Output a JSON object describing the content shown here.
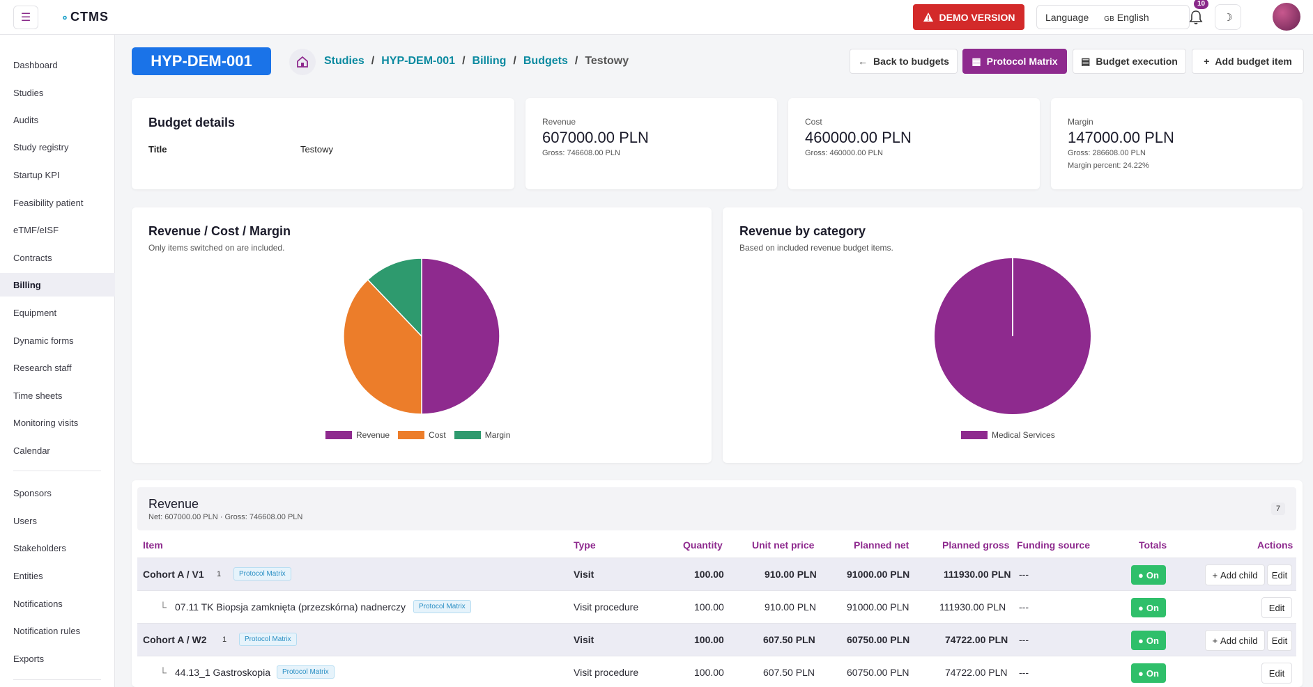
{
  "topbar": {
    "logo": "CTMS",
    "demo_label": "DEMO VERSION",
    "language_label": "Language",
    "language_flag": "GB",
    "language_value": "English",
    "notification_count": "10"
  },
  "sidebar": {
    "items": [
      {
        "label": "Dashboard"
      },
      {
        "label": "Studies"
      },
      {
        "label": "Audits"
      },
      {
        "label": "Study registry"
      },
      {
        "label": "Startup KPI"
      },
      {
        "label": "Feasibility patient"
      },
      {
        "label": "eTMF/eISF"
      },
      {
        "label": "Contracts"
      },
      {
        "label": "Billing"
      },
      {
        "label": "Equipment"
      },
      {
        "label": "Dynamic forms"
      },
      {
        "label": "Research staff"
      },
      {
        "label": "Time sheets"
      },
      {
        "label": "Monitoring visits"
      },
      {
        "label": "Calendar"
      },
      {
        "label": "Sponsors"
      },
      {
        "label": "Users"
      },
      {
        "label": "Stakeholders"
      },
      {
        "label": "Entities"
      },
      {
        "label": "Notifications"
      },
      {
        "label": "Notification rules"
      },
      {
        "label": "Exports"
      }
    ],
    "active": "Billing"
  },
  "header": {
    "study_code": "HYP-DEM-001",
    "breadcrumb": [
      "Studies",
      "HYP-DEM-001",
      "Billing",
      "Budgets",
      "Testowy"
    ],
    "buttons": {
      "back": "Back to budgets",
      "protocol": "Protocol Matrix",
      "execution": "Budget execution",
      "add": "Add budget item"
    }
  },
  "budget_details": {
    "title": "Budget details",
    "field_label": "Title",
    "field_value": "Testowy"
  },
  "kpis": {
    "revenue": {
      "label": "Revenue",
      "value": "607000.00 PLN",
      "gross": "Gross: 746608.00 PLN"
    },
    "cost": {
      "label": "Cost",
      "value": "460000.00 PLN",
      "gross": "Gross: 460000.00 PLN"
    },
    "margin": {
      "label": "Margin",
      "value": "147000.00 PLN",
      "gross": "Gross: 286608.00 PLN",
      "percent": "Margin percent: 24.22%"
    }
  },
  "chart_rcm": {
    "title": "Revenue / Cost / Margin",
    "subtitle": "Only items switched on are included."
  },
  "chart_cat": {
    "title": "Revenue by category",
    "subtitle": "Based on included revenue budget items."
  },
  "chart_data": [
    {
      "type": "pie",
      "title": "Revenue / Cost / Margin",
      "categories": [
        "Revenue",
        "Cost",
        "Margin"
      ],
      "values": [
        607000,
        460000,
        147000
      ],
      "colors": [
        "#8e2a8e",
        "#ec7d2a",
        "#2e9a6e"
      ],
      "legend": "bottom"
    },
    {
      "type": "pie",
      "title": "Revenue by category",
      "categories": [
        "Medical Services"
      ],
      "values": [
        607000
      ],
      "colors": [
        "#8e2a8e"
      ],
      "legend": "bottom"
    }
  ],
  "revenue_section": {
    "title": "Revenue",
    "summary": "Net: 607000.00 PLN · Gross: 746608.00 PLN",
    "count": "7",
    "columns": {
      "item": "Item",
      "type": "Type",
      "quantity": "Quantity",
      "unit_net": "Unit net price",
      "planned_net": "Planned net",
      "planned_gross": "Planned gross",
      "funding": "Funding source",
      "totals": "Totals",
      "actions": "Actions"
    },
    "rows": [
      {
        "item": "Cohort A / V1",
        "num": "1",
        "tag": "Protocol Matrix",
        "type": "Visit",
        "quantity": "100.00",
        "unit_net": "910.00 PLN",
        "planned_net": "91000.00 PLN",
        "planned_gross": "111930.00 PLN",
        "funding": "---",
        "toggle": "On",
        "add_child": "Add child",
        "edit": "Edit"
      },
      {
        "item": "07.11 TK Biopsja zamknięta (przezskórna) nadnerczy",
        "tag": "Protocol Matrix",
        "type": "Visit procedure",
        "quantity": "100.00",
        "unit_net": "910.00 PLN",
        "planned_net": "91000.00 PLN",
        "planned_gross": "111930.00 PLN",
        "funding": "---",
        "toggle": "On",
        "edit": "Edit"
      },
      {
        "item": "Cohort A / W2",
        "num": "1",
        "tag": "Protocol Matrix",
        "type": "Visit",
        "quantity": "100.00",
        "unit_net": "607.50 PLN",
        "planned_net": "60750.00 PLN",
        "planned_gross": "74722.00 PLN",
        "funding": "---",
        "toggle": "On",
        "add_child": "Add child",
        "edit": "Edit"
      },
      {
        "item": "44.13_1 Gastroskopia",
        "tag": "Protocol Matrix",
        "type": "Visit procedure",
        "quantity": "100.00",
        "unit_net": "607.50 PLN",
        "planned_net": "60750.00 PLN",
        "planned_gross": "74722.00 PLN",
        "funding": "---",
        "toggle": "On",
        "edit": "Edit"
      }
    ]
  }
}
